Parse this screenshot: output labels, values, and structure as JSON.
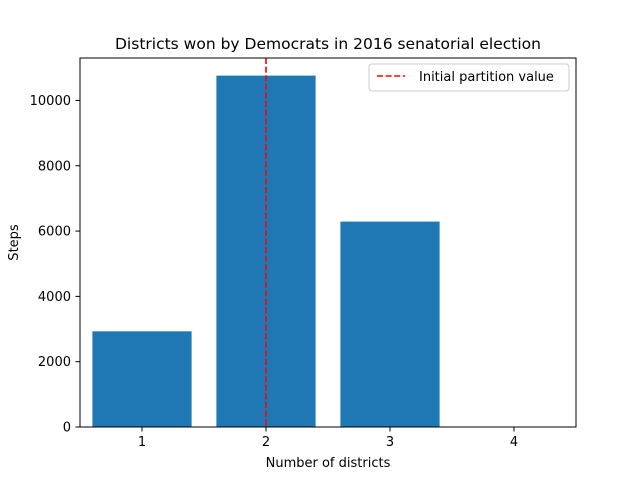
{
  "chart_data": {
    "type": "bar",
    "title": "Districts won by Democrats in 2016 senatorial election",
    "xlabel": "Number of districts",
    "ylabel": "Steps",
    "categories": [
      1,
      2,
      3,
      4
    ],
    "values": [
      2930,
      10760,
      6290,
      0
    ],
    "xlim": [
      0.5,
      4.5
    ],
    "ylim": [
      0,
      11300
    ],
    "yticks": [
      0,
      2000,
      4000,
      6000,
      8000,
      10000
    ],
    "xticks": [
      1,
      2,
      3,
      4
    ],
    "bar_color": "#1f77b4",
    "grid": false,
    "reference_line": {
      "label": "Initial partition value",
      "x": 2,
      "color": "#ff0000",
      "style": "dashed"
    },
    "legend": {
      "placement": "top-right",
      "entries": [
        "Initial partition value"
      ]
    }
  }
}
